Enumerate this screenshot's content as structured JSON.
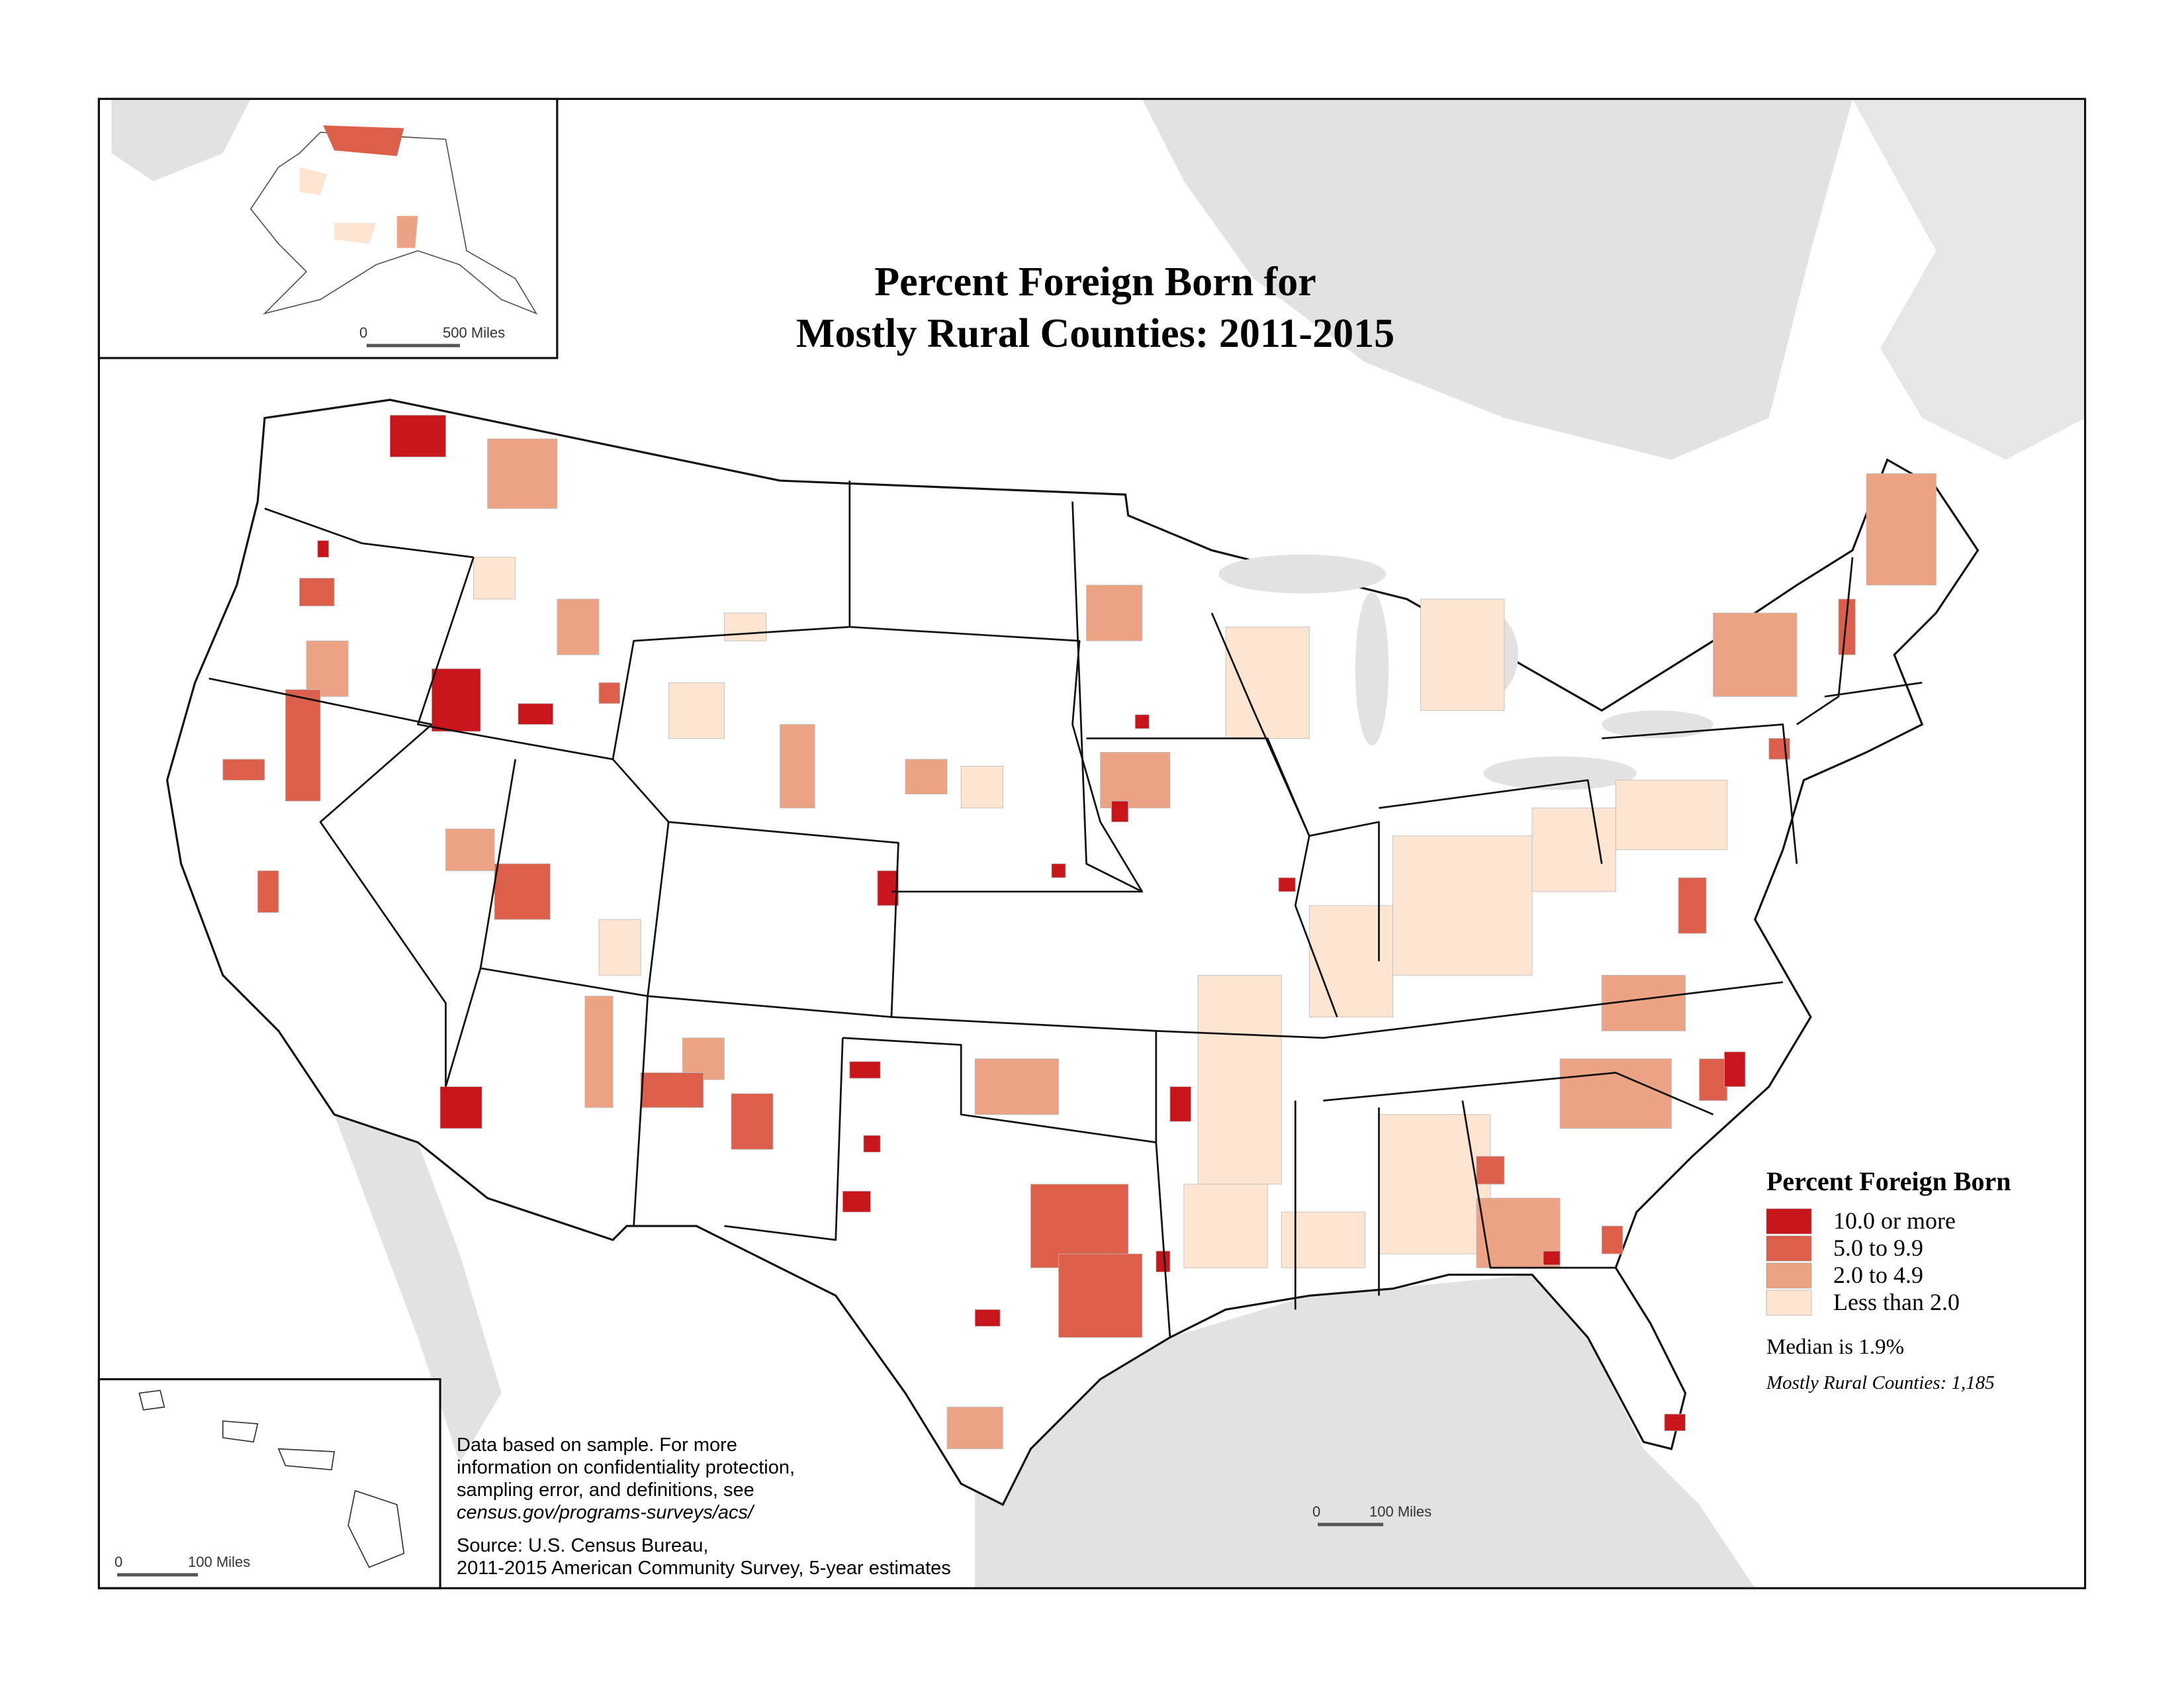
{
  "title": {
    "line1": "Percent Foreign Born for",
    "line2": "Mostly Rural Counties: 2011-2015"
  },
  "legend": {
    "title": "Percent Foreign Born",
    "items": [
      {
        "label": "10.0 or more",
        "color": "#c8141b"
      },
      {
        "label": "5.0 to 9.9",
        "color": "#dc5f4b"
      },
      {
        "label": "2.0 to 4.9",
        "color": "#eba384"
      },
      {
        "label": "Less than 2.0",
        "color": "#fde5d2"
      }
    ]
  },
  "median_note": "Median is 1.9%",
  "county_count_note": "Mostly Rural Counties: 1,185",
  "notes": [
    "Data based on sample. For more",
    "information on confidentiality protection,",
    "sampling error, and definitions, see",
    "census.gov/programs-surveys/acs/"
  ],
  "source": [
    "Source: U.S. Census Bureau,",
    "2011-2015 American Community Survey, 5-year estimates"
  ],
  "scale_bars": {
    "alaska": {
      "zero": "0",
      "label": "500 Miles"
    },
    "hawaii": {
      "zero": "0",
      "label": "100 Miles"
    },
    "main": {
      "zero": "0",
      "label": "100 Miles"
    }
  }
}
